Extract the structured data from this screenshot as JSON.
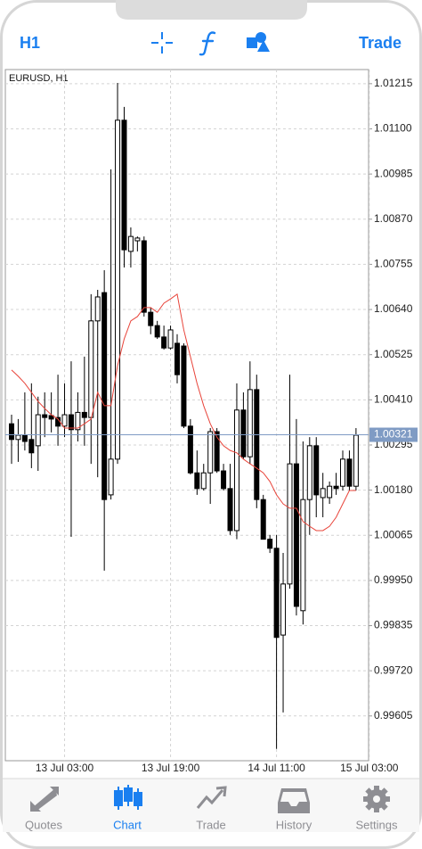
{
  "toolbar": {
    "timeframe": "H1",
    "trade": "Trade"
  },
  "chart_data": {
    "type": "candlestick",
    "title": "EURUSD, H1",
    "categories": [
      null,
      null,
      null,
      null,
      null,
      null,
      null,
      null,
      "13 Jul 03:00",
      null,
      null,
      null,
      null,
      null,
      null,
      null,
      null,
      null,
      null,
      null,
      null,
      null,
      null,
      null,
      "13 Jul 19:00",
      null,
      null,
      null,
      null,
      null,
      null,
      null,
      null,
      null,
      null,
      null,
      null,
      null,
      null,
      null,
      "14 Jul 11:00",
      null,
      null,
      null,
      null,
      null,
      null,
      null,
      null,
      null,
      null,
      null,
      null,
      null,
      "15 Jul 03:00"
    ],
    "open": [
      1.00349,
      1.00309,
      1.0032,
      1.00309,
      1.00293,
      1.00372,
      1.0037,
      1.00365,
      1.00343,
      1.00372,
      1.00334,
      1.00378,
      1.00365,
      1.00611,
      1.00683,
      1.00168,
      1.00259,
      1.01122,
      1.00788,
      1.00815,
      1.00815,
      1.00633,
      1.00599,
      1.0057,
      1.00542,
      1.00554,
      1.00547,
      1.00343,
      1.00224,
      1.00184,
      1.00224,
      1.00329,
      1.00229,
      1.00184,
      1.00077,
      1.00384,
      1.00265,
      1.00436,
      1.00156,
      1.00055,
      1.00032,
      0.99811,
      0.99941,
      1.00247,
      0.99873,
      1.00156,
      1.00293,
      1.00161,
      1.00161,
      1.0019,
      1.0019,
      1.00259,
      1.0019,
      null,
      null
    ],
    "high": [
      1.00372,
      1.00361,
      1.00429,
      1.00452,
      1.00418,
      1.00429,
      1.00429,
      1.00474,
      1.00452,
      1.00508,
      1.00429,
      1.0052,
      1.00679,
      1.0069,
      1.0074,
      1.00997,
      1.01217,
      1.01156,
      1.00849,
      1.00826,
      1.00826,
      1.00645,
      1.00611,
      1.00599,
      1.00599,
      1.00577,
      1.00554,
      1.00361,
      1.00281,
      1.00247,
      1.00338,
      1.00338,
      1.00247,
      1.00247,
      1.00452,
      1.00429,
      1.00508,
      1.00474,
      1.00168,
      1.00066,
      1.00066,
      1.0002,
      1.00474,
      1.00361,
      1.00304,
      1.00315,
      1.00315,
      1.00224,
      1.00202,
      1.00224,
      1.00281,
      1.00281,
      1.00338,
      null,
      null
    ],
    "low": [
      1.00247,
      1.00252,
      1.00281,
      1.00236,
      1.00229,
      1.00315,
      1.00327,
      1.00293,
      1.00315,
      1.00061,
      1.00304,
      1.00293,
      1.00247,
      1.00213,
      0.99975,
      1.00156,
      1.00247,
      1.00747,
      1.00747,
      1.00788,
      1.00622,
      1.00577,
      1.00565,
      1.00538,
      1.00538,
      1.00452,
      1.00338,
      1.0022,
      1.00168,
      1.00179,
      1.00145,
      1.00224,
      1.00179,
      1.00066,
      1.00055,
      1.00259,
      1.00247,
      1.00134,
      1.00055,
      1.0002,
      0.99521,
      0.99614,
      0.99929,
      0.99861,
      0.99838,
      1.00066,
      1.00111,
      1.00111,
      1.00145,
      1.00168,
      1.00179,
      1.00179,
      1.00179,
      null,
      null
    ],
    "close": [
      1.00309,
      1.0032,
      1.00304,
      1.00275,
      1.00372,
      1.00365,
      1.00361,
      1.00343,
      1.00372,
      1.00334,
      1.00378,
      1.00365,
      1.00611,
      1.00672,
      1.00156,
      1.00259,
      1.01122,
      1.00792,
      1.00826,
      1.00822,
      1.00633,
      1.00599,
      1.0057,
      1.00542,
      1.00588,
      1.00474,
      1.00343,
      1.00224,
      1.00184,
      1.00224,
      1.00329,
      1.00229,
      1.00184,
      1.00077,
      1.00384,
      1.00265,
      1.00436,
      1.00156,
      1.00055,
      1.00032,
      0.99805,
      0.99941,
      1.00247,
      0.99884,
      1.00156,
      1.00293,
      1.00168,
      1.00184,
      1.0019,
      1.00184,
      1.00259,
      1.0019,
      1.0032,
      null,
      null
    ],
    "up_color": "#ffffff",
    "down_color": "#000000",
    "ma": {
      "color": "#e8443a",
      "values": [
        1.00486,
        1.0047,
        1.00452,
        1.00429,
        1.00406,
        1.00388,
        1.00372,
        1.00361,
        1.00338,
        1.00338,
        1.00338,
        1.00349,
        1.00361,
        1.00429,
        1.00395,
        1.00395,
        1.00497,
        1.00565,
        1.00611,
        1.00622,
        1.00645,
        1.00645,
        1.00633,
        1.00656,
        1.00667,
        1.00679,
        1.00588,
        1.0052,
        1.00452,
        1.00395,
        1.00349,
        1.00315,
        1.00293,
        1.00281,
        1.00275,
        1.00259,
        1.00247,
        1.00236,
        1.00224,
        1.00202,
        1.00168,
        1.00145,
        1.00134,
        1.00134,
        1.001,
        1.00088,
        1.00077,
        1.00077,
        1.00088,
        1.00111,
        1.00145,
        1.00179,
        1.00179,
        null,
        null
      ]
    },
    "current_price": 1.00321,
    "current_price_color": "#7f9bc4",
    "ylim": [
      0.99491,
      1.01251
    ],
    "yticks": [
      1.01215,
      {
        "value": 1.011,
        "label": "1.01100"
      },
      1.00985,
      {
        "value": 1.0087,
        "label": "1.00870"
      },
      1.00755,
      {
        "value": 1.0064,
        "label": "1.00640"
      },
      1.00525,
      {
        "value": 1.0041,
        "label": "1.00410"
      },
      1.00295,
      {
        "value": 1.0018,
        "label": "1.00180"
      },
      1.00065,
      {
        "value": 0.9995,
        "label": "0.99950"
      },
      0.99835,
      {
        "value": 0.9972,
        "label": "0.99720"
      },
      0.99605
    ],
    "grid": true
  },
  "tabs": [
    "Quotes",
    "Chart",
    "Trade",
    "History",
    "Settings"
  ],
  "active_tab": 1
}
